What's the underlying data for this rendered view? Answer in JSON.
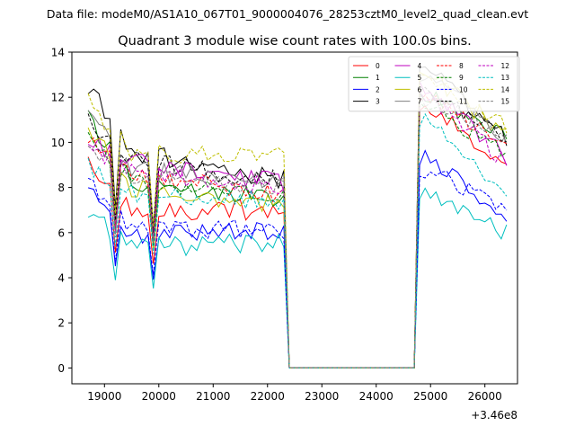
{
  "chart_data": {
    "type": "line",
    "suptitle": "Data file: modeM0/AS1A10_067T01_9000004076_28253cztM0_level2_quad_clean.evt",
    "title": "Quadrant 3 module wise count rates with 100.0s bins.",
    "xlabel": "",
    "ylabel": "",
    "x_offset_label": "+3.46e8",
    "xlim": [
      18400,
      26600
    ],
    "ylim": [
      -0.7,
      14.0
    ],
    "xticks": [
      19000,
      20000,
      21000,
      22000,
      23000,
      24000,
      25000,
      26000
    ],
    "yticks": [
      0,
      2,
      4,
      6,
      8,
      10,
      12,
      14
    ],
    "legend_position": "top-right",
    "legend_columns": 4,
    "shape": {
      "x_start": 18700,
      "x_end": 26450,
      "step": 100,
      "dip_x": [
        19200,
        19900
      ],
      "gap_start": 22350,
      "gap_end": 24750,
      "decline_x_end": 22200,
      "resume_peak_x": 25000
    },
    "series": [
      {
        "name": "0",
        "color": "#ff0000",
        "dash": "solid",
        "start": 9.0,
        "mid": 7.0,
        "pre_gap": 7.0,
        "peak": 11.5,
        "end": 9.0
      },
      {
        "name": "1",
        "color": "#008000",
        "dash": "solid",
        "start": 11.0,
        "mid": 8.2,
        "pre_gap": 7.6,
        "peak": 12.0,
        "end": 10.2
      },
      {
        "name": "2",
        "color": "#0000ff",
        "dash": "solid",
        "start": 8.4,
        "mid": 5.9,
        "pre_gap": 6.1,
        "peak": 9.3,
        "end": 6.6
      },
      {
        "name": "3",
        "color": "#000000",
        "dash": "solid",
        "start": 12.5,
        "mid": 9.6,
        "pre_gap": 8.4,
        "peak": 13.3,
        "end": 10.0
      },
      {
        "name": "4",
        "color": "#bf00bf",
        "dash": "solid",
        "start": 10.2,
        "mid": 9.1,
        "pre_gap": 8.2,
        "peak": 12.4,
        "end": 9.2
      },
      {
        "name": "5",
        "color": "#00bfbf",
        "dash": "solid",
        "start": 6.9,
        "mid": 5.3,
        "pre_gap": 5.6,
        "peak": 7.7,
        "end": 5.9
      },
      {
        "name": "6",
        "color": "#bfbf00",
        "dash": "solid",
        "start": 10.8,
        "mid": 8.0,
        "pre_gap": 7.2,
        "peak": 13.0,
        "end": 10.2
      },
      {
        "name": "7",
        "color": "#808080",
        "dash": "solid",
        "start": 11.5,
        "mid": 8.8,
        "pre_gap": 8.2,
        "peak": 13.1,
        "end": 10.0
      },
      {
        "name": "8",
        "color": "#ff0000",
        "dash": "dashed",
        "start": 10.0,
        "mid": 8.6,
        "pre_gap": 7.7,
        "peak": 11.9,
        "end": 9.7
      },
      {
        "name": "9",
        "color": "#008000",
        "dash": "dashed",
        "start": 10.4,
        "mid": 8.3,
        "pre_gap": 7.5,
        "peak": 11.6,
        "end": 9.4
      },
      {
        "name": "10",
        "color": "#0000ff",
        "dash": "dashed",
        "start": 8.3,
        "mid": 6.3,
        "pre_gap": 6.1,
        "peak": 8.8,
        "end": 6.9
      },
      {
        "name": "11",
        "color": "#000000",
        "dash": "dashed",
        "start": 11.1,
        "mid": 9.2,
        "pre_gap": 8.3,
        "peak": 12.3,
        "end": 10.0
      },
      {
        "name": "12",
        "color": "#bf00bf",
        "dash": "dashed",
        "start": 9.6,
        "mid": 8.7,
        "pre_gap": 8.0,
        "peak": 12.0,
        "end": 9.0
      },
      {
        "name": "13",
        "color": "#00bfbf",
        "dash": "dashed",
        "start": 9.0,
        "mid": 7.7,
        "pre_gap": 7.4,
        "peak": 10.9,
        "end": 7.7
      },
      {
        "name": "14",
        "color": "#bfbf00",
        "dash": "dashed",
        "start": 11.8,
        "mid": 9.5,
        "pre_gap": 9.3,
        "peak": 12.9,
        "end": 10.6
      },
      {
        "name": "15",
        "color": "#808080",
        "dash": "dashed",
        "start": 9.4,
        "mid": 8.4,
        "pre_gap": 8.0,
        "peak": 11.8,
        "end": 10.3
      }
    ]
  }
}
